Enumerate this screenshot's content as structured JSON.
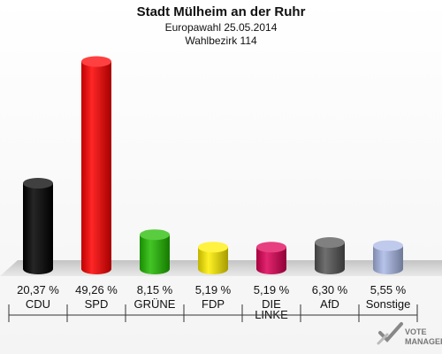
{
  "chart_data": {
    "type": "bar",
    "title": "Stadt Mülheim an der Ruhr",
    "subtitle_lines": [
      "Europawahl 25.05.2014",
      "Wahlbezirk 114"
    ],
    "categories": [
      [
        "CDU"
      ],
      [
        "SPD"
      ],
      [
        "GRÜNE"
      ],
      [
        "FDP"
      ],
      [
        "DIE",
        "LINKE"
      ],
      [
        "AfD"
      ],
      [
        "Sonstige"
      ]
    ],
    "values": [
      20.37,
      49.26,
      8.15,
      5.19,
      5.19,
      6.3,
      5.55
    ],
    "value_labels": [
      "20,37 %",
      "49,26 %",
      "8,15 %",
      "5,19 %",
      "5,19 %",
      "6,30 %",
      "5,55 %"
    ],
    "colors": [
      "#000000",
      "#ff0000",
      "#22bb00",
      "#ffee00",
      "#dd0055",
      "#555555",
      "#aab8e6"
    ],
    "ylim": [
      0,
      50
    ],
    "grid": false,
    "legend": "none"
  },
  "logo": {
    "line1": "VOTE",
    "line2": "MANAGER"
  }
}
